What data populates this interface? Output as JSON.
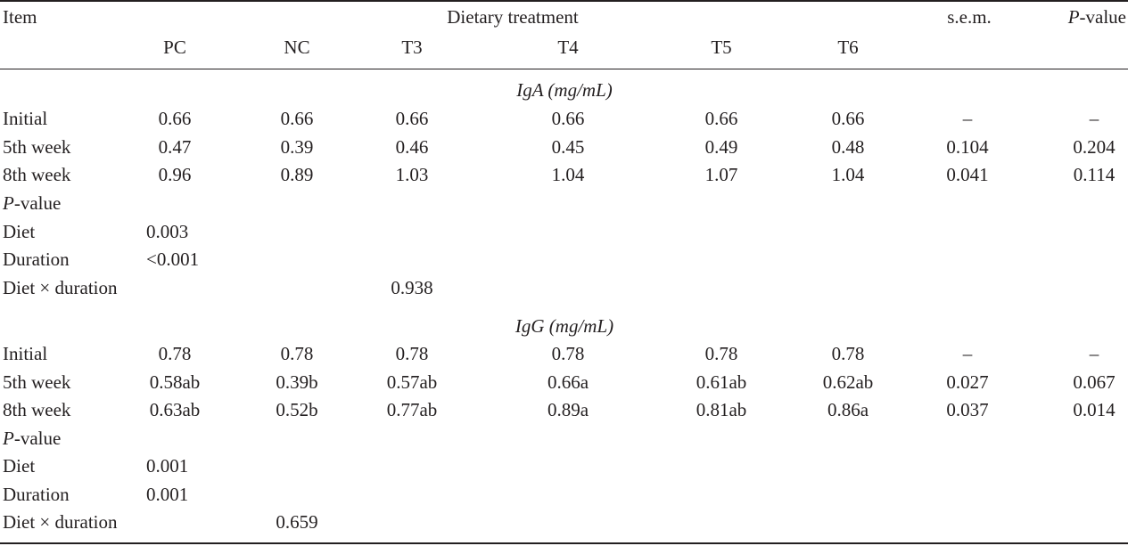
{
  "header": {
    "item": "Item",
    "dietary_treatment": "Dietary treatment",
    "sem": "s.e.m.",
    "pvalue_p": "P",
    "pvalue_rest": "-value",
    "cols": [
      "PC",
      "NC",
      "T3",
      "T4",
      "T5",
      "T6"
    ]
  },
  "sections": [
    {
      "title": "IgA (mg/mL)",
      "rows": [
        {
          "label": "Initial",
          "values": [
            "0.66",
            "0.66",
            "0.66",
            "0.66",
            "0.66",
            "0.66"
          ],
          "sem": "–",
          "p": "–"
        },
        {
          "label": "5th week",
          "values": [
            "0.47",
            "0.39",
            "0.46",
            "0.45",
            "0.49",
            "0.48"
          ],
          "sem": "0.104",
          "p": "0.204"
        },
        {
          "label": "8th week",
          "values": [
            "0.96",
            "0.89",
            "1.03",
            "1.04",
            "1.07",
            "1.04"
          ],
          "sem": "0.041",
          "p": "0.114"
        }
      ],
      "pvalue_heading_p": "P",
      "pvalue_heading_rest": "-value",
      "diet_label": "Diet",
      "diet_value": "0.003",
      "duration_label": "Duration",
      "duration_value": "<0.001",
      "interaction_label": "Diet × duration",
      "interaction_value": "0.938"
    },
    {
      "title": "IgG (mg/mL)",
      "rows": [
        {
          "label": "Initial",
          "values": [
            "0.78",
            "0.78",
            "0.78",
            "0.78",
            "0.78",
            "0.78"
          ],
          "sem": "–",
          "p": "–"
        },
        {
          "label": "5th week",
          "values": [
            "0.58ab",
            "0.39b",
            "0.57ab",
            "0.66a",
            "0.61ab",
            "0.62ab"
          ],
          "sem": "0.027",
          "p": "0.067"
        },
        {
          "label": "8th week",
          "values": [
            "0.63ab",
            "0.52b",
            "0.77ab",
            "0.89a",
            "0.81ab",
            "0.86a"
          ],
          "sem": "0.037",
          "p": "0.014"
        }
      ],
      "pvalue_heading_p": "P",
      "pvalue_heading_rest": "-value",
      "diet_label": "Diet",
      "diet_value": "0.001",
      "duration_label": "Duration",
      "duration_value": "0.001",
      "interaction_label": "Diet × duration",
      "interaction_value": "0.659"
    }
  ]
}
